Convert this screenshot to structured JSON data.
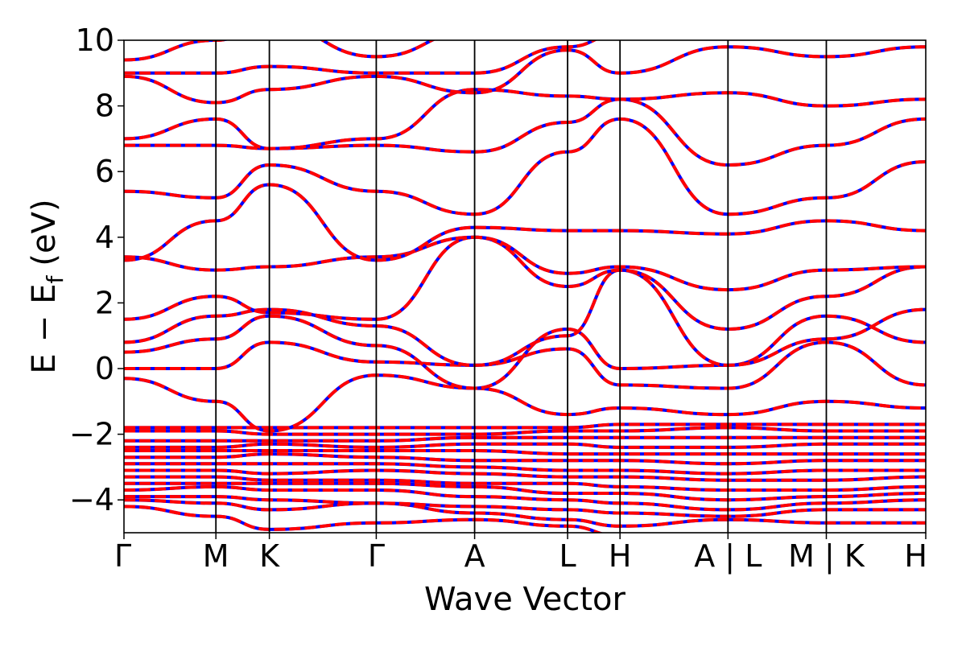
{
  "chart_data": {
    "type": "line",
    "title": "",
    "xlabel": "Wave Vector",
    "ylabel_parts": {
      "E": "E",
      "minus": "−",
      "sub": "f",
      "unit": "(eV)"
    },
    "ylim": [
      -5,
      10
    ],
    "yticks": [
      -4,
      -2,
      0,
      2,
      4,
      6,
      8,
      10
    ],
    "ytick_labels": [
      "−4",
      "−2",
      "0",
      "2",
      "4",
      "6",
      "8",
      "10"
    ],
    "xlim": [
      0,
      7.5
    ],
    "segment_boundaries": [
      0,
      0.86,
      1.36,
      2.36,
      3.28,
      4.15,
      4.64,
      5.65,
      6.57,
      7.5
    ],
    "xticks": [
      {
        "x": 0.0,
        "label": "Γ"
      },
      {
        "x": 0.86,
        "label": "M"
      },
      {
        "x": 1.36,
        "label": "K"
      },
      {
        "x": 2.36,
        "label": "Γ"
      },
      {
        "x": 3.28,
        "label": "A"
      },
      {
        "x": 4.15,
        "label": "L"
      },
      {
        "x": 4.64,
        "label": "H"
      },
      {
        "x": 5.65,
        "label": "A | L"
      },
      {
        "x": 6.57,
        "label": "M | K"
      },
      {
        "x": 7.5,
        "label": "H"
      }
    ],
    "grid": false,
    "legend": "none",
    "series_styles": [
      {
        "role": "reference",
        "color": "#0000ff",
        "style": "solid"
      },
      {
        "role": "overlay",
        "color": "#ff0000",
        "style": "dashed"
      }
    ],
    "bands": [
      [
        -4.2,
        -4.5,
        -4.9,
        -4.7,
        -4.6,
        -4.8,
        -5.1,
        -5.1,
        -5.3,
        -5.2
      ],
      [
        -4.0,
        -4.1,
        -4.3,
        -4.1,
        -4.4,
        -4.6,
        -4.8,
        -4.6,
        -4.7,
        -4.7
      ],
      [
        -3.9,
        -3.9,
        -4.0,
        -4.1,
        -4.2,
        -4.3,
        -4.4,
        -4.5,
        -4.3,
        -4.3
      ],
      [
        -3.7,
        -3.6,
        -3.7,
        -3.7,
        -3.9,
        -4.0,
        -4.1,
        -4.3,
        -4.1,
        -4.0
      ],
      [
        -3.5,
        -3.5,
        -3.5,
        -3.5,
        -3.6,
        -3.8,
        -3.8,
        -4.0,
        -3.9,
        -3.8
      ],
      [
        -3.3,
        -3.3,
        -3.4,
        -3.4,
        -3.5,
        -3.5,
        -3.6,
        -3.7,
        -3.7,
        -3.6
      ],
      [
        -3.1,
        -3.1,
        -3.2,
        -3.1,
        -3.2,
        -3.3,
        -3.3,
        -3.4,
        -3.4,
        -3.3
      ],
      [
        -2.9,
        -2.9,
        -2.9,
        -2.9,
        -3.0,
        -3.1,
        -3.1,
        -3.2,
        -3.1,
        -3.1
      ],
      [
        -2.7,
        -2.7,
        -2.6,
        -2.7,
        -2.8,
        -2.8,
        -2.8,
        -2.9,
        -2.8,
        -2.8
      ],
      [
        -2.5,
        -2.5,
        -2.5,
        -2.5,
        -2.5,
        -2.6,
        -2.6,
        -2.6,
        -2.6,
        -2.6
      ],
      [
        -2.4,
        -2.4,
        -2.3,
        -2.4,
        -2.3,
        -2.3,
        -2.4,
        -2.4,
        -2.3,
        -2.3
      ],
      [
        -2.2,
        -2.2,
        -2.2,
        -2.2,
        -2.1,
        -2.1,
        -2.1,
        -2.1,
        -2.1,
        -2.1
      ],
      [
        -1.9,
        -1.9,
        -2.0,
        -2.0,
        -2.0,
        -1.9,
        -1.9,
        -1.8,
        -1.9,
        -1.9
      ],
      [
        -1.8,
        -1.8,
        -1.8,
        -1.8,
        -1.8,
        -1.8,
        -1.7,
        -1.7,
        -1.7,
        -1.7
      ],
      [
        -0.3,
        -1.0,
        -1.9,
        -0.2,
        -0.6,
        -1.4,
        -1.2,
        -1.4,
        -1.0,
        -1.2
      ],
      [
        0.0,
        0.0,
        0.8,
        0.2,
        0.1,
        0.6,
        -0.5,
        -0.6,
        0.8,
        -0.5
      ],
      [
        0.5,
        0.9,
        1.6,
        0.7,
        -0.6,
        1.2,
        0.0,
        0.1,
        1.6,
        0.8
      ],
      [
        0.8,
        1.6,
        1.8,
        1.3,
        0.1,
        1.0,
        3.0,
        0.1,
        0.9,
        1.8
      ],
      [
        1.5,
        2.2,
        1.7,
        1.5,
        4.0,
        2.5,
        3.0,
        1.2,
        2.2,
        3.1
      ],
      [
        3.4,
        3.0,
        3.1,
        3.4,
        4.0,
        2.9,
        3.1,
        2.4,
        3.0,
        3.1
      ],
      [
        3.3,
        4.5,
        5.6,
        3.3,
        4.3,
        4.2,
        4.2,
        4.1,
        4.5,
        4.2
      ],
      [
        5.4,
        5.2,
        6.2,
        5.4,
        4.7,
        6.6,
        7.6,
        4.7,
        5.2,
        6.3
      ],
      [
        6.8,
        6.8,
        6.7,
        6.8,
        6.6,
        7.5,
        8.2,
        6.2,
        6.8,
        7.6
      ],
      [
        7.0,
        7.6,
        6.7,
        7.0,
        8.5,
        8.3,
        8.2,
        8.4,
        8.0,
        8.2
      ],
      [
        8.9,
        8.1,
        8.5,
        8.9,
        8.4,
        9.7,
        9.0,
        9.8,
        9.5,
        9.8
      ],
      [
        9.0,
        9.0,
        9.2,
        9.0,
        9.0,
        9.8,
        10.2,
        10.2,
        10.2,
        10.2
      ],
      [
        9.4,
        10.0,
        10.5,
        9.5,
        10.3,
        10.5,
        10.6,
        10.6,
        10.6,
        10.6
      ]
    ]
  }
}
